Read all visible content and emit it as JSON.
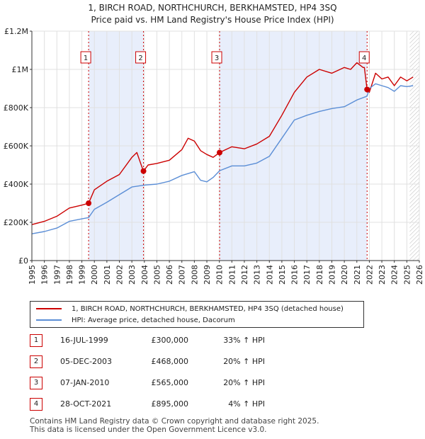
{
  "title": {
    "line1": "1, BIRCH ROAD, NORTHCHURCH, BERKHAMSTED, HP4 3SQ",
    "line2": "Price paid vs. HM Land Registry's House Price Index (HPI)"
  },
  "chart_data": {
    "type": "line",
    "title": "1, BIRCH ROAD, NORTHCHURCH, BERKHAMSTED, HP4 3SQ — Price paid vs. HM Land Registry's House Price Index (HPI)",
    "xlim": [
      1995,
      2026
    ],
    "ylim": [
      0,
      1200000
    ],
    "x_ticks": [
      1995,
      1996,
      1997,
      1998,
      1999,
      2000,
      2001,
      2002,
      2003,
      2004,
      2005,
      2006,
      2007,
      2008,
      2009,
      2010,
      2011,
      2012,
      2013,
      2014,
      2015,
      2016,
      2017,
      2018,
      2019,
      2020,
      2021,
      2022,
      2023,
      2024,
      2025,
      2026
    ],
    "y_ticks": [
      {
        "value": 0,
        "label": "£0"
      },
      {
        "value": 200000,
        "label": "£200K"
      },
      {
        "value": 400000,
        "label": "£400K"
      },
      {
        "value": 600000,
        "label": "£600K"
      },
      {
        "value": 800000,
        "label": "£800K"
      },
      {
        "value": 1000000,
        "label": "£1M"
      },
      {
        "value": 1200000,
        "label": "£1.2M"
      }
    ],
    "grid": true,
    "shaded_periods": [
      [
        1999.54,
        2003.93
      ],
      [
        2010.02,
        2021.82
      ]
    ],
    "future_hatch_from": 2025.0,
    "colors": {
      "property": "#cc0000",
      "hpi": "#5b8ed6",
      "marker": "#cc0000",
      "shade": "#e8eefb"
    },
    "series": [
      {
        "name": "1, BIRCH ROAD, NORTHCHURCH, BERKHAMSTED, HP4 3SQ (detached house)",
        "color": "#cc0000",
        "x": [
          1995.0,
          1996.0,
          1997.0,
          1998.0,
          1999.0,
          1999.54,
          2000.0,
          2001.0,
          2002.0,
          2003.0,
          2003.4,
          2003.8,
          2003.93,
          2004.3,
          2005.0,
          2006.0,
          2007.0,
          2007.5,
          2008.0,
          2008.5,
          2009.0,
          2009.5,
          2010.02,
          2011.0,
          2012.0,
          2013.0,
          2014.0,
          2015.0,
          2016.0,
          2016.5,
          2017.0,
          2018.0,
          2019.0,
          2020.0,
          2020.5,
          2021.0,
          2021.5,
          2021.6,
          2021.82,
          2022.0,
          2022.5,
          2023.0,
          2023.5,
          2024.0,
          2024.5,
          2025.0,
          2025.5
        ],
        "y": [
          188000,
          205000,
          232000,
          275000,
          290000,
          300000,
          370000,
          415000,
          450000,
          540000,
          565000,
          490000,
          468000,
          500000,
          508000,
          525000,
          580000,
          640000,
          625000,
          575000,
          555000,
          540000,
          565000,
          595000,
          585000,
          610000,
          650000,
          760000,
          880000,
          920000,
          960000,
          1000000,
          980000,
          1010000,
          1000000,
          1035000,
          1010000,
          1010000,
          895000,
          880000,
          980000,
          950000,
          960000,
          915000,
          960000,
          940000,
          960000
        ]
      },
      {
        "name": "HPI: Average price, detached house, Dacorum",
        "color": "#5b8ed6",
        "x": [
          1995.0,
          1996.0,
          1997.0,
          1998.0,
          1999.0,
          1999.54,
          2000.0,
          2001.0,
          2002.0,
          2003.0,
          2004.0,
          2005.0,
          2006.0,
          2007.0,
          2008.0,
          2008.5,
          2009.0,
          2009.5,
          2010.02,
          2011.0,
          2012.0,
          2013.0,
          2014.0,
          2015.0,
          2016.0,
          2017.0,
          2018.0,
          2019.0,
          2020.0,
          2021.0,
          2021.82,
          2022.0,
          2022.5,
          2023.0,
          2023.5,
          2024.0,
          2024.5,
          2025.0,
          2025.5
        ],
        "y": [
          140000,
          152000,
          170000,
          205000,
          218000,
          225000,
          268000,
          305000,
          345000,
          385000,
          395000,
          400000,
          415000,
          445000,
          465000,
          420000,
          412000,
          435000,
          470000,
          495000,
          495000,
          510000,
          545000,
          640000,
          735000,
          760000,
          780000,
          795000,
          805000,
          840000,
          860000,
          900000,
          925000,
          915000,
          905000,
          885000,
          915000,
          910000,
          915000
        ]
      }
    ],
    "sales": [
      {
        "id": "1",
        "x": 1999.54,
        "y": 300000
      },
      {
        "id": "2",
        "x": 2003.93,
        "y": 468000
      },
      {
        "id": "3",
        "x": 2010.02,
        "y": 565000
      },
      {
        "id": "4",
        "x": 2021.82,
        "y": 895000
      }
    ]
  },
  "legend": {
    "property": "1, BIRCH ROAD, NORTHCHURCH, BERKHAMSTED, HP4 3SQ (detached house)",
    "hpi": "HPI: Average price, detached house, Dacorum"
  },
  "sales_table": [
    {
      "id": "1",
      "date": "16-JUL-1999",
      "price": "£300,000",
      "hpi": "33% ↑ HPI"
    },
    {
      "id": "2",
      "date": "05-DEC-2003",
      "price": "£468,000",
      "hpi": "20% ↑ HPI"
    },
    {
      "id": "3",
      "date": "07-JAN-2010",
      "price": "£565,000",
      "hpi": "20% ↑ HPI"
    },
    {
      "id": "4",
      "date": "28-OCT-2021",
      "price": "£895,000",
      "hpi": "4% ↑ HPI"
    }
  ],
  "footer": {
    "line1": "Contains HM Land Registry data © Crown copyright and database right 2025.",
    "line2": "This data is licensed under the Open Government Licence v3.0."
  }
}
